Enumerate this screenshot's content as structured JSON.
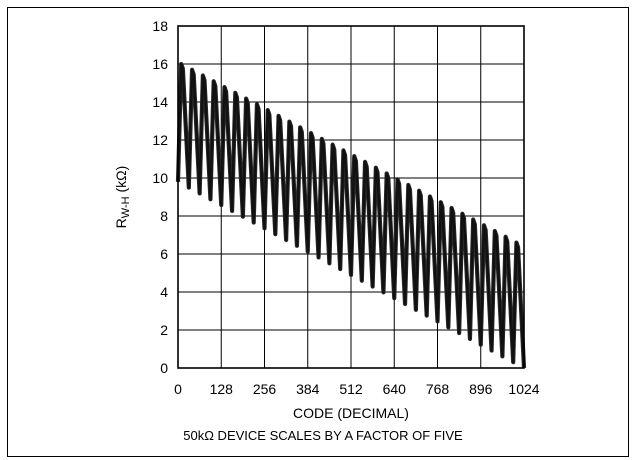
{
  "chart_data": {
    "type": "line",
    "title": "",
    "xlabel": "CODE (DECIMAL)",
    "ylabel_main": "R",
    "ylabel_sub": "W-H",
    "ylabel_unit": " (kΩ)",
    "xlim": [
      0,
      1024
    ],
    "ylim": [
      0,
      18
    ],
    "xticks": [
      "0",
      "128",
      "256",
      "384",
      "512",
      "640",
      "768",
      "896",
      "1024"
    ],
    "yticks": [
      "0",
      "2",
      "4",
      "6",
      "8",
      "10",
      "12",
      "14",
      "16",
      "18"
    ],
    "grid": true,
    "legend": "none",
    "note": "50kΩ DEVICE SCALES BY A FACTOR OF FIVE",
    "series": [
      {
        "color": "#2a2a2a",
        "period": 32,
        "peak_start": 16.0,
        "peak_end": 6.3,
        "trough_start": 9.8,
        "trough_end": 0.0,
        "x_start": 0,
        "x_end": 1024
      }
    ]
  }
}
